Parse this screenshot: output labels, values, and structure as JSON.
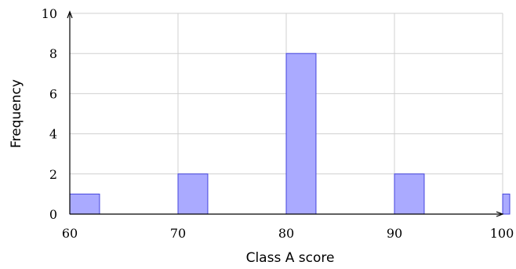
{
  "chart_data": {
    "type": "bar",
    "title": "",
    "xlabel": "Class A score",
    "ylabel": "Frequency",
    "xlim": [
      60,
      100
    ],
    "ylim": [
      0,
      10
    ],
    "x_ticks": [
      "60",
      "70",
      "80",
      "90",
      "100"
    ],
    "y_ticks": [
      "0",
      "2",
      "4",
      "6",
      "8",
      "10"
    ],
    "grid": true,
    "bar_color": "#aaaaff",
    "bar_edge_color": "#4444dd",
    "series": [
      {
        "x": [
          60,
          70,
          80,
          90,
          100
        ],
        "values": [
          1,
          2,
          8,
          2,
          1
        ]
      }
    ]
  }
}
